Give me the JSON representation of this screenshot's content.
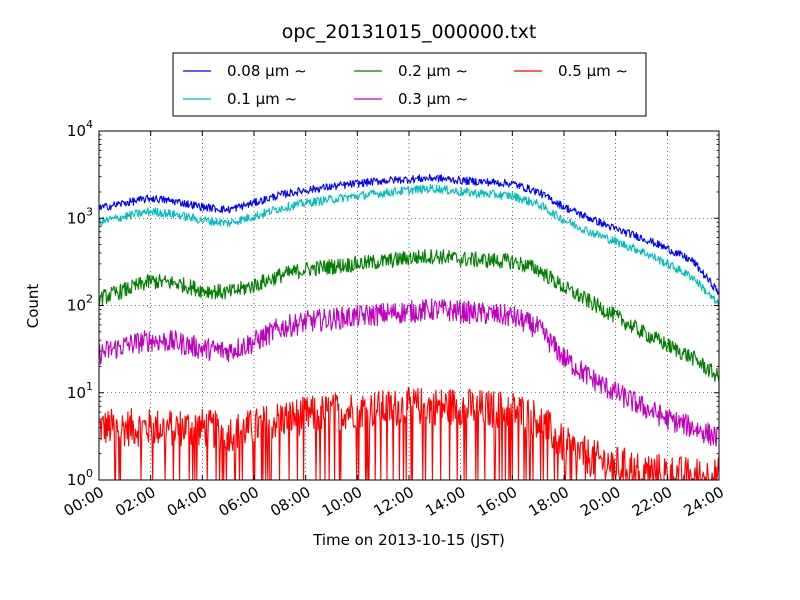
{
  "chart_data": {
    "type": "line",
    "title": "opc_20131015_000000.txt",
    "xlabel": "Time on 2013-10-15 (JST)",
    "ylabel": "Count",
    "x_unit": "hour",
    "xlim": [
      0,
      24
    ],
    "ylim": [
      1,
      10000
    ],
    "yscale": "log",
    "grid": true,
    "legend_position": "top-center",
    "xtick_labels": [
      "00:00",
      "02:00",
      "04:00",
      "06:00",
      "08:00",
      "10:00",
      "12:00",
      "14:00",
      "16:00",
      "18:00",
      "20:00",
      "22:00",
      "24:00"
    ],
    "ytick_labels": [
      {
        "base": "10",
        "exp": "0"
      },
      {
        "base": "10",
        "exp": "1"
      },
      {
        "base": "10",
        "exp": "2"
      },
      {
        "base": "10",
        "exp": "3"
      },
      {
        "base": "10",
        "exp": "4"
      }
    ],
    "x": [
      0,
      1,
      2,
      3,
      4,
      5,
      6,
      7,
      8,
      9,
      10,
      11,
      12,
      13,
      14,
      15,
      16,
      17,
      18,
      19,
      20,
      21,
      22,
      23,
      24
    ],
    "series": [
      {
        "name": "0.08 μm ∼",
        "color": "#0000ff",
        "values": [
          1300,
          1500,
          1700,
          1550,
          1350,
          1250,
          1500,
          1850,
          2100,
          2300,
          2500,
          2700,
          2800,
          2900,
          2700,
          2600,
          2500,
          2000,
          1350,
          1000,
          750,
          600,
          450,
          320,
          140
        ]
      },
      {
        "name": "0.1 μm ∼",
        "color": "#00bfbf",
        "values": [
          900,
          1050,
          1200,
          1100,
          950,
          880,
          1050,
          1300,
          1500,
          1650,
          1800,
          1950,
          2100,
          2200,
          2000,
          1900,
          1800,
          1450,
          950,
          700,
          540,
          420,
          300,
          210,
          100
        ]
      },
      {
        "name": "0.2 μm ∼",
        "color": "#008000",
        "values": [
          120,
          150,
          190,
          180,
          150,
          140,
          170,
          220,
          260,
          280,
          300,
          320,
          350,
          370,
          340,
          330,
          320,
          260,
          160,
          110,
          75,
          50,
          35,
          25,
          15
        ]
      },
      {
        "name": "0.3 μm ∼",
        "color": "#bf00bf",
        "values": [
          28,
          35,
          40,
          38,
          32,
          30,
          38,
          55,
          65,
          70,
          75,
          80,
          85,
          90,
          85,
          80,
          75,
          55,
          25,
          15,
          10,
          7,
          5,
          4,
          3
        ]
      },
      {
        "name": "0.5 μm ∼",
        "color": "#ff0000",
        "values": [
          4,
          4,
          4,
          4,
          4,
          3.5,
          4,
          5,
          5.5,
          6,
          6.5,
          6.5,
          7,
          7,
          7,
          6.5,
          6.5,
          5,
          2.5,
          1.8,
          1.5,
          1.3,
          1.2,
          1.1,
          1.1
        ]
      }
    ]
  }
}
